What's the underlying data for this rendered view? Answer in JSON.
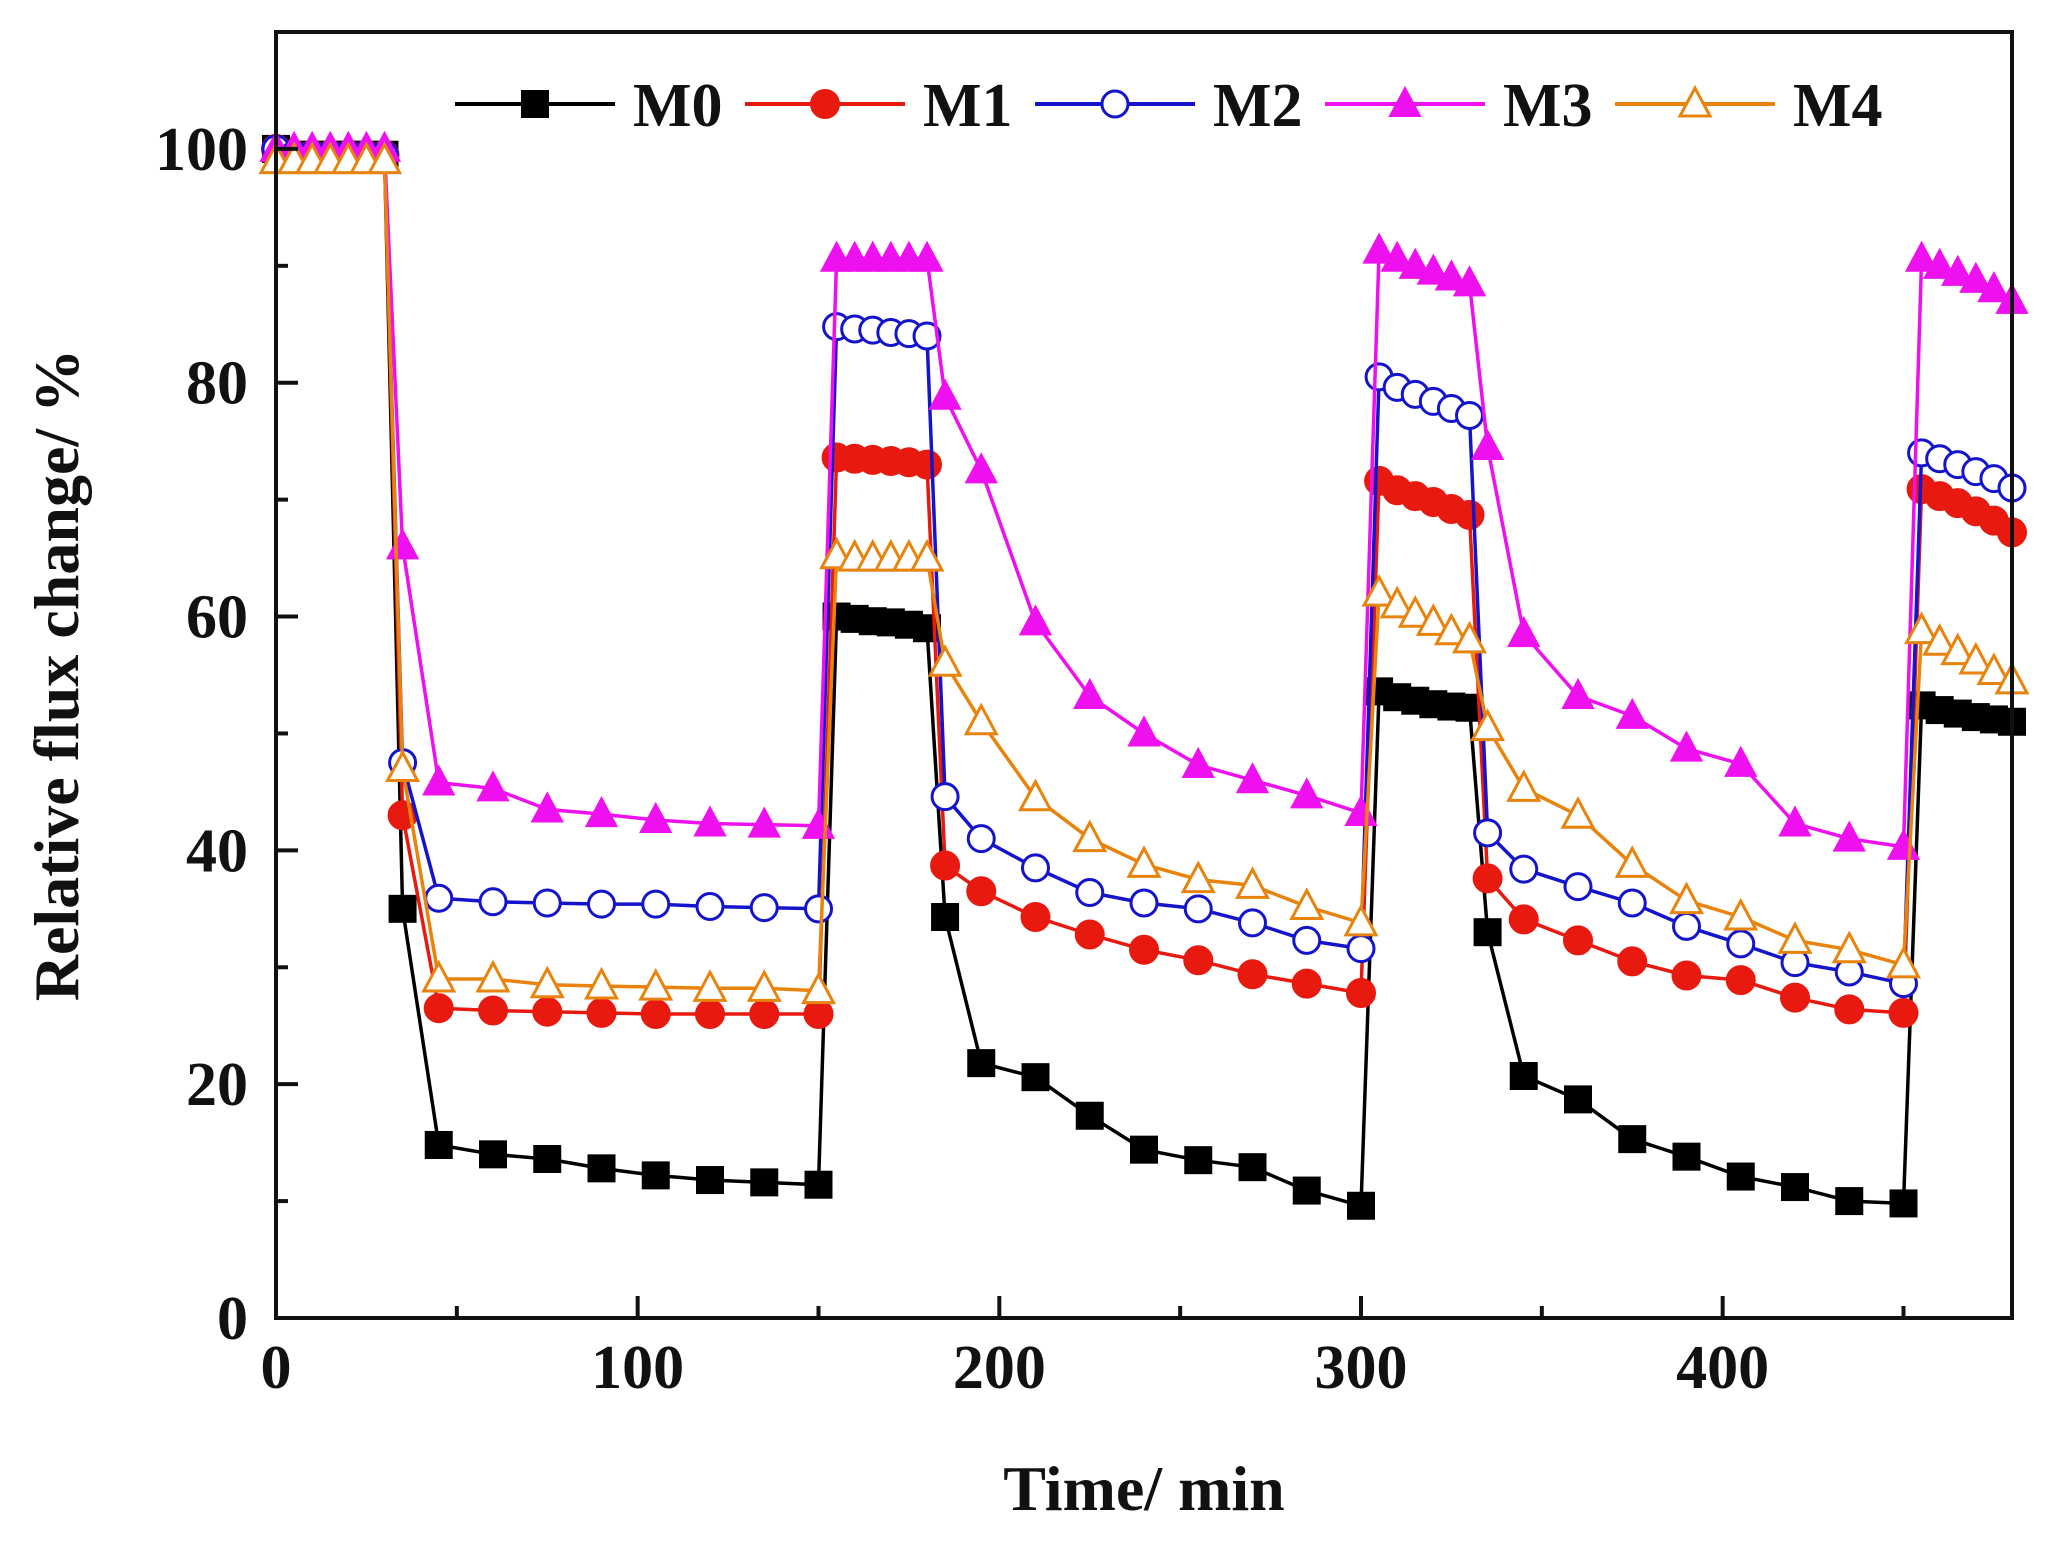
{
  "chart_data": {
    "type": "line",
    "title": "",
    "xlabel": "Time/ min",
    "ylabel": "Relative flux change/ %",
    "xlim": [
      0,
      480
    ],
    "ylim": [
      0,
      110
    ],
    "xticks": [
      0,
      100,
      200,
      300,
      400
    ],
    "xtick_labels": [
      "0",
      "100",
      "200",
      "300",
      "400"
    ],
    "yticks": [
      0,
      20,
      40,
      60,
      80,
      100
    ],
    "ytick_labels": [
      "0",
      "20",
      "40",
      "60",
      "80",
      "100"
    ],
    "grid": false,
    "legend_position": "top",
    "series": [
      {
        "name": "M0",
        "color": "#000000",
        "marker": "square-filled",
        "x": [
          0,
          5,
          10,
          15,
          20,
          25,
          30,
          35,
          45,
          60,
          75,
          90,
          105,
          120,
          135,
          150,
          155,
          160,
          165,
          170,
          175,
          180,
          185,
          195,
          210,
          225,
          240,
          255,
          270,
          285,
          300,
          305,
          310,
          315,
          320,
          325,
          330,
          335,
          345,
          360,
          375,
          390,
          405,
          420,
          435,
          450,
          455,
          460,
          465,
          470,
          475,
          480
        ],
        "y": [
          100,
          99.5,
          99.5,
          99.5,
          99.5,
          99.5,
          99.5,
          35,
          14.8,
          14,
          13.6,
          12.8,
          12.2,
          11.8,
          11.6,
          11.4,
          60,
          59.8,
          59.6,
          59.5,
          59.3,
          59,
          34.3,
          21.8,
          20.6,
          17.3,
          14.4,
          13.5,
          12.9,
          10.9,
          9.6,
          53.6,
          53.1,
          52.8,
          52.5,
          52.3,
          52.2,
          33,
          20.7,
          18.7,
          15.3,
          13.8,
          12.1,
          11.2,
          10,
          9.8,
          52.4,
          52,
          51.7,
          51.4,
          51.2,
          51
        ]
      },
      {
        "name": "M1",
        "color": "#e8190f",
        "marker": "circle-filled",
        "x": [
          0,
          5,
          10,
          15,
          20,
          25,
          30,
          35,
          45,
          60,
          75,
          90,
          105,
          120,
          135,
          150,
          155,
          160,
          165,
          170,
          175,
          180,
          185,
          195,
          210,
          225,
          240,
          255,
          270,
          285,
          300,
          305,
          310,
          315,
          320,
          325,
          330,
          335,
          345,
          360,
          375,
          390,
          405,
          420,
          435,
          450,
          455,
          460,
          465,
          470,
          475,
          480
        ],
        "y": [
          100,
          99.5,
          99.5,
          99.5,
          99.5,
          99.5,
          99.5,
          43,
          26.5,
          26.3,
          26.2,
          26.1,
          26,
          26,
          26,
          26,
          73.6,
          73.5,
          73.4,
          73.3,
          73.2,
          73,
          38.7,
          36.5,
          34.3,
          32.8,
          31.5,
          30.6,
          29.4,
          28.6,
          27.8,
          71.6,
          70.8,
          70.3,
          69.8,
          69.2,
          68.7,
          37.6,
          34.1,
          32.3,
          30.5,
          29.3,
          28.9,
          27.4,
          26.4,
          26.1,
          70.9,
          70.3,
          69.7,
          69,
          68.2,
          67.2
        ]
      },
      {
        "name": "M2",
        "color": "#1414cc",
        "marker": "circle-open",
        "x": [
          0,
          5,
          10,
          15,
          20,
          25,
          30,
          35,
          45,
          60,
          75,
          90,
          105,
          120,
          135,
          150,
          155,
          160,
          165,
          170,
          175,
          180,
          185,
          195,
          210,
          225,
          240,
          255,
          270,
          285,
          300,
          305,
          310,
          315,
          320,
          325,
          330,
          335,
          345,
          360,
          375,
          390,
          405,
          420,
          435,
          450,
          455,
          460,
          465,
          470,
          475,
          480
        ],
        "y": [
          100,
          99.5,
          99.5,
          99.5,
          99.5,
          99.5,
          99.5,
          47.5,
          35.9,
          35.6,
          35.5,
          35.4,
          35.4,
          35.2,
          35.1,
          35,
          84.8,
          84.6,
          84.5,
          84.3,
          84.2,
          84,
          44.6,
          41,
          38.5,
          36.4,
          35.5,
          35,
          33.8,
          32.3,
          31.6,
          80.5,
          79.6,
          79,
          78.4,
          77.8,
          77.2,
          41.5,
          38.4,
          36.9,
          35.5,
          33.5,
          32,
          30.4,
          29.6,
          28.6,
          74,
          73.5,
          73,
          72.4,
          71.8,
          71
        ]
      },
      {
        "name": "M3",
        "color": "#ee10ee",
        "marker": "triangle-filled",
        "x": [
          0,
          5,
          10,
          15,
          20,
          25,
          30,
          35,
          45,
          60,
          75,
          90,
          105,
          120,
          135,
          150,
          155,
          160,
          165,
          170,
          175,
          180,
          185,
          195,
          210,
          225,
          240,
          255,
          270,
          285,
          300,
          305,
          310,
          315,
          320,
          325,
          330,
          335,
          345,
          360,
          375,
          390,
          405,
          420,
          435,
          450,
          455,
          460,
          465,
          470,
          475,
          480
        ],
        "y": [
          100,
          100,
          100,
          100,
          100,
          100,
          100,
          66,
          45.8,
          45.3,
          43.5,
          43.1,
          42.6,
          42.3,
          42.2,
          42.1,
          90.6,
          90.6,
          90.6,
          90.6,
          90.6,
          90.6,
          78.8,
          72.5,
          59.5,
          53.2,
          50,
          47.3,
          46,
          44.7,
          43.2,
          91.3,
          90.6,
          90,
          89.5,
          89,
          88.5,
          74.5,
          58.5,
          53.2,
          51.5,
          48.7,
          47.4,
          42.3,
          41,
          40.3,
          90.6,
          90,
          89.4,
          88.8,
          88,
          87
        ]
      },
      {
        "name": "M4",
        "color": "#e8830e",
        "marker": "triangle-open",
        "x": [
          0,
          5,
          10,
          15,
          20,
          25,
          30,
          35,
          45,
          60,
          75,
          90,
          105,
          120,
          135,
          150,
          155,
          160,
          165,
          170,
          175,
          180,
          185,
          195,
          210,
          225,
          240,
          255,
          270,
          285,
          300,
          305,
          310,
          315,
          320,
          325,
          330,
          335,
          345,
          360,
          375,
          390,
          405,
          420,
          435,
          450,
          455,
          460,
          465,
          470,
          475,
          480
        ],
        "y": [
          99,
          99,
          99,
          99,
          99,
          99,
          99,
          47,
          29,
          29,
          28.5,
          28.4,
          28.3,
          28.2,
          28.2,
          28,
          65.2,
          65,
          65,
          65,
          65,
          65,
          56,
          51,
          44.5,
          41,
          38.8,
          37.5,
          37,
          35.2,
          33.8,
          62,
          61,
          60.2,
          59.5,
          58.7,
          58,
          50.5,
          45.3,
          43,
          38.8,
          35.7,
          34.3,
          32.3,
          31.5,
          30.2,
          58.8,
          57.8,
          57,
          56.2,
          55.3,
          54.5
        ]
      }
    ]
  }
}
